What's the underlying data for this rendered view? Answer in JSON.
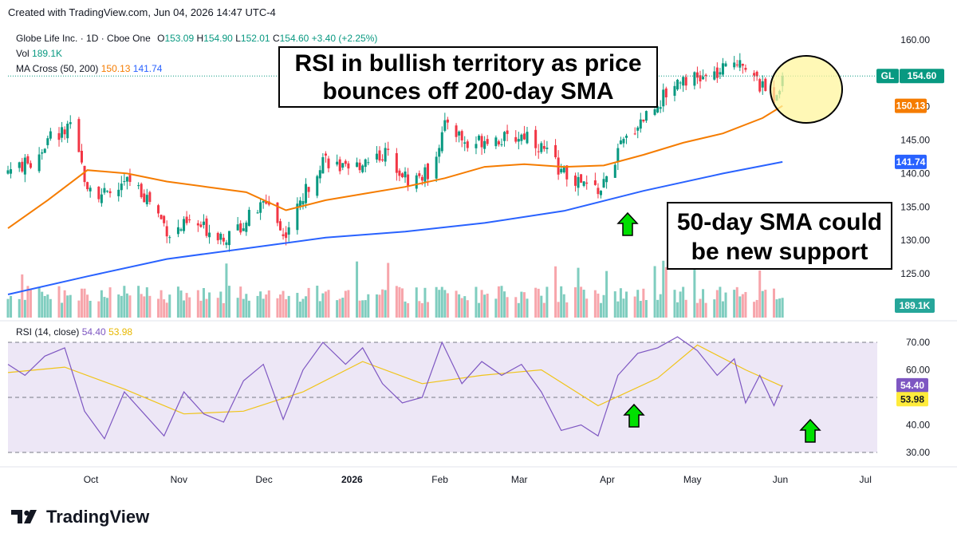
{
  "header": {
    "text": "Created with TradingView.com, Jun 04, 2026 14:47 UTC-4"
  },
  "legend": {
    "symbol": "Globe Life Inc. · 1D · Cboe One",
    "o_label": "O",
    "o": "153.09",
    "h_label": "H",
    "h": "154.90",
    "l_label": "L",
    "l": "152.01",
    "c_label": "C",
    "c": "154.60",
    "change": "+3.40 (+2.25%)",
    "vol_label": "Vol",
    "vol": "189.1K",
    "ma_label": "MA Cross (50, 200)",
    "ma50": "150.13",
    "ma200": "141.74"
  },
  "rsi_legend": {
    "label": "RSI (14, close)",
    "rsi": "54.40",
    "ma": "53.98"
  },
  "callouts": {
    "rsi_line1": "RSI in bullish territory as price",
    "rsi_line2": "bounces off 200-day SMA",
    "sma_line1": "50-day SMA could",
    "sma_line2": "be new support"
  },
  "badges": {
    "gl_symbol": "GL",
    "gl_price": "154.60",
    "ma50": "150.13",
    "ma200": "141.74",
    "volume": "189.1K",
    "rsi": "54.40",
    "rsi_ma": "53.98"
  },
  "brand": {
    "name": "TradingView",
    "logo_icon": "tradingview-logo-icon"
  },
  "colors": {
    "up": "#089981",
    "down": "#f23645",
    "vol_up": "#7fcdbf",
    "vol_down": "#f7a5ab",
    "ma50": "#f57c00",
    "ma200": "#2962ff",
    "rsi": "#7e57c2",
    "rsi_ma": "#f0c419",
    "rsi_band": "#ede7f6",
    "arrow": "#00e000",
    "highlight": "#fff59d"
  },
  "chart_data": [
    {
      "type": "candlestick",
      "title": "Globe Life Inc. · 1D · Cboe One",
      "x_tick_labels": [
        "Oct",
        "Nov",
        "Dec",
        "2026",
        "Feb",
        "Mar",
        "Apr",
        "May",
        "Jun",
        "Jul"
      ],
      "y_tick_labels": [
        "160.00",
        "155.00",
        "150.00",
        "145.00",
        "140.00",
        "135.00",
        "130.00",
        "125.00"
      ],
      "ylim": [
        120,
        162
      ],
      "grid": false,
      "close_path": [
        [
          "2025-09-04",
          140.5
        ],
        [
          "2025-09-12",
          141.5
        ],
        [
          "2025-09-19",
          145.5
        ],
        [
          "2025-09-26",
          146.5
        ],
        [
          "2025-10-02",
          138.5
        ],
        [
          "2025-10-09",
          136.5
        ],
        [
          "2025-10-17",
          139.0
        ],
        [
          "2025-10-24",
          136.0
        ],
        [
          "2025-10-31",
          131.0
        ],
        [
          "2025-11-07",
          132.5
        ],
        [
          "2025-11-14",
          131.5
        ],
        [
          "2025-11-21",
          130.5
        ],
        [
          "2025-11-28",
          133.5
        ],
        [
          "2025-12-05",
          136.0
        ],
        [
          "2025-12-10",
          130.5
        ],
        [
          "2025-12-17",
          136.5
        ],
        [
          "2025-12-24",
          142.5
        ],
        [
          "2026-01-02",
          140.0
        ],
        [
          "2026-01-09",
          142.5
        ],
        [
          "2026-01-16",
          143.0
        ],
        [
          "2026-01-23",
          139.0
        ],
        [
          "2026-01-30",
          140.0
        ],
        [
          "2026-02-06",
          148.0
        ],
        [
          "2026-02-13",
          144.0
        ],
        [
          "2026-02-20",
          145.5
        ],
        [
          "2026-02-27",
          145.0
        ],
        [
          "2026-03-06",
          146.0
        ],
        [
          "2026-03-13",
          143.0
        ],
        [
          "2026-03-20",
          139.5
        ],
        [
          "2026-03-27",
          138.0
        ],
        [
          "2026-04-01",
          137.5
        ],
        [
          "2026-04-08",
          144.0
        ],
        [
          "2026-04-15",
          148.0
        ],
        [
          "2026-04-22",
          151.0
        ],
        [
          "2026-04-29",
          154.5
        ],
        [
          "2026-05-06",
          154.0
        ],
        [
          "2026-05-13",
          155.0
        ],
        [
          "2026-05-20",
          157.5
        ],
        [
          "2026-05-27",
          153.0
        ],
        [
          "2026-06-01",
          151.5
        ],
        [
          "2026-06-04",
          154.6
        ]
      ],
      "series": [
        {
          "name": "MA 50",
          "values": [
            [
              "2025-09-04",
              131.8
            ],
            [
              "2025-09-18",
              136.0
            ],
            [
              "2025-10-02",
              140.5
            ],
            [
              "2025-10-16",
              140.0
            ],
            [
              "2025-10-30",
              138.8
            ],
            [
              "2025-11-13",
              138.0
            ],
            [
              "2025-11-27",
              137.2
            ],
            [
              "2025-12-11",
              134.5
            ],
            [
              "2025-12-25",
              136.0
            ],
            [
              "2026-01-08",
              137.0
            ],
            [
              "2026-01-22",
              138.0
            ],
            [
              "2026-02-05",
              139.3
            ],
            [
              "2026-02-19",
              141.0
            ],
            [
              "2026-03-05",
              141.4
            ],
            [
              "2026-03-19",
              141.0
            ],
            [
              "2026-04-02",
              141.2
            ],
            [
              "2026-04-16",
              142.8
            ],
            [
              "2026-04-30",
              144.6
            ],
            [
              "2026-05-14",
              146.0
            ],
            [
              "2026-05-28",
              148.3
            ],
            [
              "2026-06-04",
              150.13
            ]
          ]
        },
        {
          "name": "MA 200",
          "values": [
            [
              "2025-09-04",
              121.9
            ],
            [
              "2025-10-02",
              124.6
            ],
            [
              "2025-10-30",
              127.2
            ],
            [
              "2025-11-27",
              128.8
            ],
            [
              "2025-12-25",
              130.4
            ],
            [
              "2026-01-22",
              131.3
            ],
            [
              "2026-02-19",
              132.6
            ],
            [
              "2026-03-19",
              134.4
            ],
            [
              "2026-04-16",
              137.4
            ],
            [
              "2026-05-14",
              140.0
            ],
            [
              "2026-06-04",
              141.74
            ]
          ]
        }
      ],
      "last_values": {
        "open": 153.09,
        "high": 154.9,
        "low": 152.01,
        "close": 154.6,
        "change": 3.4,
        "change_pct": 2.25
      }
    },
    {
      "type": "bar",
      "title": "Vol",
      "last_value": "189.1K",
      "colors_by": "candle direction"
    },
    {
      "type": "line",
      "title": "RSI (14, close)",
      "y_tick_labels": [
        "70.00",
        "60.00",
        "50.00",
        "40.00",
        "30.00"
      ],
      "ylim": [
        25,
        75
      ],
      "bands": [
        30,
        70
      ],
      "midline": 50,
      "series": [
        {
          "name": "RSI",
          "values": [
            [
              "2025-09-04",
              62
            ],
            [
              "2025-09-10",
              58
            ],
            [
              "2025-09-17",
              65
            ],
            [
              "2025-09-24",
              68
            ],
            [
              "2025-10-01",
              45
            ],
            [
              "2025-10-08",
              35
            ],
            [
              "2025-10-15",
              52
            ],
            [
              "2025-10-22",
              44
            ],
            [
              "2025-10-29",
              36
            ],
            [
              "2025-11-05",
              52
            ],
            [
              "2025-11-12",
              44
            ],
            [
              "2025-11-19",
              41
            ],
            [
              "2025-11-26",
              56
            ],
            [
              "2025-12-03",
              62
            ],
            [
              "2025-12-10",
              42
            ],
            [
              "2025-12-17",
              60
            ],
            [
              "2025-12-24",
              70
            ],
            [
              "2026-01-01",
              62
            ],
            [
              "2026-01-07",
              68
            ],
            [
              "2026-01-14",
              55
            ],
            [
              "2026-01-21",
              48
            ],
            [
              "2026-01-28",
              50
            ],
            [
              "2026-02-04",
              70
            ],
            [
              "2026-02-11",
              55
            ],
            [
              "2026-02-18",
              63
            ],
            [
              "2026-02-25",
              58
            ],
            [
              "2026-03-04",
              62
            ],
            [
              "2026-03-11",
              52
            ],
            [
              "2026-03-18",
              38
            ],
            [
              "2026-03-25",
              40
            ],
            [
              "2026-03-31",
              36
            ],
            [
              "2026-04-07",
              58
            ],
            [
              "2026-04-14",
              66
            ],
            [
              "2026-04-21",
              68
            ],
            [
              "2026-04-28",
              72
            ],
            [
              "2026-05-05",
              67
            ],
            [
              "2026-05-12",
              58
            ],
            [
              "2026-05-18",
              64
            ],
            [
              "2026-05-22",
              48
            ],
            [
              "2026-05-27",
              58
            ],
            [
              "2026-06-01",
              47
            ],
            [
              "2026-06-04",
              54.4
            ]
          ]
        },
        {
          "name": "RSI-based MA",
          "values": [
            [
              "2025-09-04",
              59
            ],
            [
              "2025-09-24",
              61
            ],
            [
              "2025-10-15",
              53
            ],
            [
              "2025-11-05",
              44
            ],
            [
              "2025-11-26",
              45
            ],
            [
              "2025-12-17",
              52
            ],
            [
              "2026-01-07",
              63
            ],
            [
              "2026-01-28",
              55
            ],
            [
              "2026-02-18",
              58
            ],
            [
              "2026-03-11",
              60
            ],
            [
              "2026-03-31",
              47
            ],
            [
              "2026-04-21",
              57
            ],
            [
              "2026-05-05",
              69
            ],
            [
              "2026-05-22",
              60
            ],
            [
              "2026-06-04",
              53.98
            ]
          ]
        }
      ]
    }
  ]
}
